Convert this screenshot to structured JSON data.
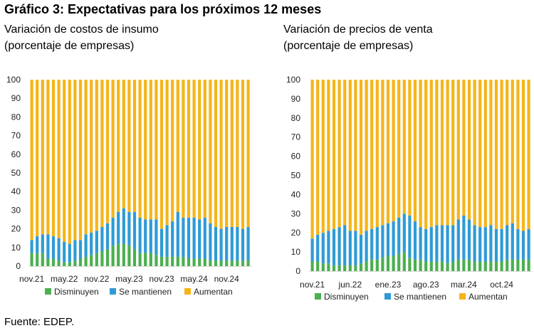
{
  "title": "Gráfico 3: Expectativas para los próximos 12 meses",
  "source": "Fuente: EDEP.",
  "colors": {
    "dec": "#4caf50",
    "same": "#2e9bd6",
    "inc": "#f5b51a"
  },
  "chart_data": [
    {
      "type": "bar",
      "stacked": true,
      "title": "Variación de costos de insumo",
      "subtitle": "(porcentaje de empresas)",
      "xlabel": "",
      "ylabel": "",
      "ylim": [
        0,
        100
      ],
      "yticks": [
        0,
        10,
        20,
        30,
        40,
        50,
        60,
        70,
        80,
        90,
        100
      ],
      "xtick_labels": [
        {
          "index": 0,
          "label": "nov.21"
        },
        {
          "index": 6,
          "label": "may.22"
        },
        {
          "index": 12,
          "label": "nov.22"
        },
        {
          "index": 18,
          "label": "may.23"
        },
        {
          "index": 24,
          "label": "nov.23"
        },
        {
          "index": 30,
          "label": "may.24"
        },
        {
          "index": 36,
          "label": "nov.24"
        }
      ],
      "legend": [
        "Disminuyen",
        "Se mantienen",
        "Aumentan"
      ],
      "series": [
        {
          "name": "Disminuyen",
          "values": [
            7,
            7,
            7,
            4,
            4,
            3,
            2,
            2,
            3,
            4,
            5,
            6,
            7,
            8,
            9,
            11,
            12,
            12,
            11,
            9,
            7,
            7,
            7,
            6,
            5,
            5,
            5,
            5,
            5,
            4,
            4,
            4,
            4,
            3,
            3,
            3,
            3,
            3,
            3,
            3,
            3
          ]
        },
        {
          "name": "Se mantienen",
          "values": [
            7,
            9,
            10,
            13,
            12,
            12,
            11,
            10,
            11,
            10,
            12,
            12,
            12,
            13,
            14,
            15,
            17,
            19,
            18,
            20,
            19,
            18,
            18,
            19,
            15,
            17,
            19,
            24,
            21,
            22,
            22,
            21,
            22,
            20,
            18,
            17,
            18,
            18,
            18,
            17,
            18
          ]
        },
        {
          "name": "Aumentan",
          "values": [
            86,
            84,
            83,
            83,
            84,
            85,
            87,
            88,
            86,
            86,
            83,
            82,
            81,
            79,
            77,
            74,
            71,
            69,
            71,
            71,
            74,
            75,
            75,
            75,
            80,
            78,
            76,
            71,
            74,
            74,
            74,
            75,
            74,
            77,
            79,
            80,
            79,
            79,
            79,
            80,
            79
          ]
        }
      ]
    },
    {
      "type": "bar",
      "stacked": true,
      "title": "Variación de precios de venta",
      "subtitle": "(porcentaje de empresas)",
      "xlabel": "",
      "ylabel": "",
      "ylim": [
        0,
        100
      ],
      "yticks": [
        0,
        10,
        20,
        30,
        40,
        50,
        60,
        70,
        80,
        90,
        100
      ],
      "xtick_labels": [
        {
          "index": 0,
          "label": "nov.21"
        },
        {
          "index": 7,
          "label": "jun.22"
        },
        {
          "index": 14,
          "label": "ene.23"
        },
        {
          "index": 21,
          "label": "ago.23"
        },
        {
          "index": 28,
          "label": "mar.24"
        },
        {
          "index": 35,
          "label": "oct.24"
        }
      ],
      "legend": [
        "Disminuyen",
        "Se mantienen",
        "Aumentan"
      ],
      "series": [
        {
          "name": "Disminuyen",
          "values": [
            5,
            5,
            4,
            4,
            3,
            3,
            3,
            3,
            3,
            4,
            5,
            6,
            6,
            7,
            8,
            8,
            9,
            10,
            7,
            6,
            6,
            5,
            5,
            5,
            5,
            4,
            5,
            6,
            6,
            6,
            5,
            5,
            5,
            5,
            5,
            5,
            6,
            6,
            6,
            6,
            6
          ]
        },
        {
          "name": "Se mantienen",
          "values": [
            12,
            14,
            16,
            17,
            19,
            20,
            21,
            18,
            18,
            15,
            16,
            16,
            17,
            17,
            17,
            18,
            19,
            20,
            22,
            20,
            17,
            17,
            18,
            19,
            19,
            20,
            19,
            21,
            23,
            21,
            19,
            18,
            18,
            19,
            17,
            17,
            18,
            19,
            16,
            15,
            16
          ]
        },
        {
          "name": "Aumentan",
          "values": [
            83,
            81,
            80,
            79,
            78,
            77,
            76,
            79,
            79,
            81,
            79,
            78,
            77,
            76,
            75,
            74,
            72,
            70,
            71,
            74,
            77,
            78,
            77,
            76,
            76,
            76,
            76,
            73,
            71,
            73,
            76,
            77,
            77,
            76,
            78,
            78,
            76,
            75,
            78,
            79,
            78
          ]
        }
      ]
    }
  ]
}
